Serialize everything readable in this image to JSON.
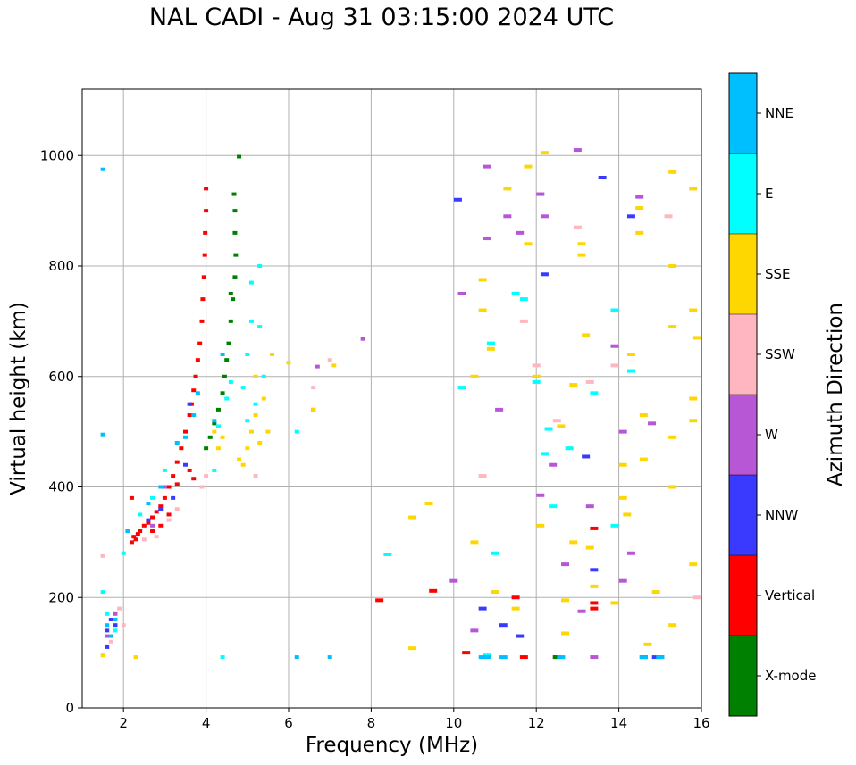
{
  "chart_data": {
    "type": "scatter",
    "title": "NAL CADI - Aug 31 03:15:00 2024 UTC",
    "xlabel": "Frequency (MHz)",
    "ylabel": "Virtual height (km)",
    "xlim": [
      1,
      16
    ],
    "ylim": [
      0,
      1120
    ],
    "xticks": [
      2,
      4,
      6,
      8,
      10,
      12,
      14,
      16
    ],
    "yticks": [
      0,
      200,
      400,
      600,
      800,
      1000
    ],
    "grid": true,
    "colorbar": {
      "label": "Azimuth Direction",
      "entries": [
        {
          "name": "X-mode",
          "color": "#008000"
        },
        {
          "name": "Vertical",
          "color": "#ff0000"
        },
        {
          "name": "NNW",
          "color": "#3a3aff"
        },
        {
          "name": "W",
          "color": "#b757d6"
        },
        {
          "name": "SSW",
          "color": "#ffb6c1"
        },
        {
          "name": "SSE",
          "color": "#ffd700"
        },
        {
          "name": "E",
          "color": "#00ffff"
        },
        {
          "name": "NNE",
          "color": "#00bfff"
        }
      ]
    },
    "series": [
      {
        "name": "Vertical",
        "points": [
          [
            2.2,
            300
          ],
          [
            2.25,
            310
          ],
          [
            2.3,
            305
          ],
          [
            2.35,
            315
          ],
          [
            2.4,
            320
          ],
          [
            2.5,
            330
          ],
          [
            2.6,
            335
          ],
          [
            2.7,
            345
          ],
          [
            2.8,
            355
          ],
          [
            2.9,
            365
          ],
          [
            3.0,
            380
          ],
          [
            3.1,
            400
          ],
          [
            3.2,
            420
          ],
          [
            3.3,
            445
          ],
          [
            3.4,
            470
          ],
          [
            3.5,
            500
          ],
          [
            3.6,
            530
          ],
          [
            3.65,
            550
          ],
          [
            3.7,
            575
          ],
          [
            3.75,
            600
          ],
          [
            3.8,
            630
          ],
          [
            3.85,
            660
          ],
          [
            3.9,
            700
          ],
          [
            3.92,
            740
          ],
          [
            3.95,
            780
          ],
          [
            3.97,
            820
          ],
          [
            3.98,
            860
          ],
          [
            4.0,
            900
          ],
          [
            4.0,
            940
          ],
          [
            3.6,
            430
          ],
          [
            3.7,
            415
          ],
          [
            3.3,
            405
          ],
          [
            3.1,
            350
          ],
          [
            2.9,
            330
          ],
          [
            2.7,
            320
          ],
          [
            2.2,
            380
          ],
          [
            12.5,
            92
          ],
          [
            13.4,
            190
          ],
          [
            13.4,
            180
          ],
          [
            13.4,
            325
          ],
          [
            14.6,
            92
          ],
          [
            11.7,
            92
          ],
          [
            8.2,
            195
          ],
          [
            9.5,
            212
          ],
          [
            11.5,
            200
          ],
          [
            10.3,
            100
          ]
        ]
      },
      {
        "name": "X-mode",
        "points": [
          [
            4.0,
            470
          ],
          [
            4.1,
            490
          ],
          [
            4.2,
            515
          ],
          [
            4.3,
            540
          ],
          [
            4.4,
            570
          ],
          [
            4.45,
            600
          ],
          [
            4.5,
            630
          ],
          [
            4.55,
            660
          ],
          [
            4.6,
            700
          ],
          [
            4.65,
            740
          ],
          [
            4.7,
            780
          ],
          [
            4.72,
            820
          ],
          [
            4.7,
            860
          ],
          [
            4.7,
            900
          ],
          [
            4.68,
            930
          ],
          [
            4.6,
            750
          ],
          [
            4.8,
            998
          ],
          [
            12.5,
            92
          ]
        ]
      },
      {
        "name": "NNW",
        "points": [
          [
            1.6,
            140
          ],
          [
            1.7,
            160
          ],
          [
            1.8,
            150
          ],
          [
            1.6,
            110
          ],
          [
            2.6,
            340
          ],
          [
            2.9,
            360
          ],
          [
            3.2,
            380
          ],
          [
            3.5,
            440
          ],
          [
            3.6,
            550
          ],
          [
            10.1,
            920
          ],
          [
            10.7,
            180
          ],
          [
            11.2,
            150
          ],
          [
            11.6,
            130
          ],
          [
            12.2,
            785
          ],
          [
            13.2,
            455
          ],
          [
            13.6,
            960
          ],
          [
            13.4,
            250
          ],
          [
            14.3,
            890
          ],
          [
            15.0,
            92
          ],
          [
            14.9,
            92
          ]
        ]
      },
      {
        "name": "W",
        "points": [
          [
            1.6,
            130
          ],
          [
            1.8,
            170
          ],
          [
            2.7,
            330
          ],
          [
            3.0,
            400
          ],
          [
            6.7,
            618
          ],
          [
            6.6,
            540
          ],
          [
            7.8,
            668
          ],
          [
            10.0,
            230
          ],
          [
            10.2,
            750
          ],
          [
            10.5,
            140
          ],
          [
            10.8,
            850
          ],
          [
            10.8,
            980
          ],
          [
            11.1,
            540
          ],
          [
            11.3,
            890
          ],
          [
            11.6,
            860
          ],
          [
            12.1,
            930
          ],
          [
            12.2,
            890
          ],
          [
            12.1,
            385
          ],
          [
            12.4,
            440
          ],
          [
            12.7,
            260
          ],
          [
            13.0,
            1010
          ],
          [
            13.1,
            175
          ],
          [
            13.3,
            365
          ],
          [
            13.4,
            92
          ],
          [
            13.9,
            655
          ],
          [
            14.1,
            500
          ],
          [
            14.1,
            230
          ],
          [
            14.3,
            280
          ],
          [
            14.5,
            925
          ],
          [
            14.8,
            515
          ]
        ]
      },
      {
        "name": "SSW",
        "points": [
          [
            1.7,
            120
          ],
          [
            1.9,
            180
          ],
          [
            2.0,
            150
          ],
          [
            1.5,
            275
          ],
          [
            2.5,
            305
          ],
          [
            2.8,
            310
          ],
          [
            3.1,
            340
          ],
          [
            3.3,
            360
          ],
          [
            3.9,
            400
          ],
          [
            4.0,
            420
          ],
          [
            5.2,
            420
          ],
          [
            6.6,
            580
          ],
          [
            7.0,
            630
          ],
          [
            10.7,
            420
          ],
          [
            11.7,
            700
          ],
          [
            12.0,
            620
          ],
          [
            12.5,
            520
          ],
          [
            13.0,
            870
          ],
          [
            13.3,
            590
          ],
          [
            13.9,
            620
          ],
          [
            15.2,
            890
          ],
          [
            15.9,
            200
          ]
        ]
      },
      {
        "name": "SSE",
        "points": [
          [
            1.5,
            95
          ],
          [
            2.3,
            92
          ],
          [
            4.2,
            500
          ],
          [
            4.3,
            470
          ],
          [
            4.4,
            490
          ],
          [
            4.8,
            450
          ],
          [
            4.9,
            440
          ],
          [
            5.0,
            470
          ],
          [
            5.1,
            500
          ],
          [
            5.2,
            530
          ],
          [
            5.3,
            480
          ],
          [
            5.4,
            560
          ],
          [
            5.5,
            500
          ],
          [
            5.2,
            600
          ],
          [
            5.6,
            640
          ],
          [
            6.0,
            625
          ],
          [
            6.6,
            540
          ],
          [
            7.1,
            620
          ],
          [
            9.0,
            345
          ],
          [
            9.0,
            108
          ],
          [
            9.4,
            370
          ],
          [
            10.5,
            600
          ],
          [
            10.5,
            300
          ],
          [
            10.7,
            720
          ],
          [
            10.7,
            775
          ],
          [
            10.9,
            650
          ],
          [
            11.0,
            210
          ],
          [
            11.3,
            940
          ],
          [
            11.5,
            180
          ],
          [
            11.8,
            980
          ],
          [
            11.8,
            840
          ],
          [
            12.0,
            600
          ],
          [
            12.1,
            330
          ],
          [
            12.2,
            1005
          ],
          [
            12.6,
            510
          ],
          [
            12.7,
            195
          ],
          [
            12.7,
            135
          ],
          [
            12.9,
            300
          ],
          [
            12.9,
            585
          ],
          [
            13.1,
            840
          ],
          [
            13.1,
            820
          ],
          [
            13.2,
            675
          ],
          [
            13.3,
            290
          ],
          [
            13.4,
            220
          ],
          [
            13.9,
            190
          ],
          [
            14.1,
            440
          ],
          [
            14.1,
            380
          ],
          [
            14.2,
            350
          ],
          [
            14.3,
            640
          ],
          [
            14.5,
            905
          ],
          [
            14.5,
            860
          ],
          [
            14.6,
            530
          ],
          [
            14.6,
            450
          ],
          [
            14.7,
            115
          ],
          [
            14.9,
            210
          ],
          [
            15.3,
            970
          ],
          [
            15.3,
            800
          ],
          [
            15.3,
            690
          ],
          [
            15.3,
            490
          ],
          [
            15.3,
            400
          ],
          [
            15.3,
            150
          ],
          [
            15.8,
            940
          ],
          [
            15.8,
            720
          ],
          [
            15.8,
            560
          ],
          [
            15.8,
            520
          ],
          [
            15.8,
            260
          ],
          [
            15.9,
            670
          ]
        ]
      },
      {
        "name": "E",
        "points": [
          [
            1.5,
            210
          ],
          [
            1.6,
            170
          ],
          [
            1.8,
            140
          ],
          [
            2.0,
            280
          ],
          [
            2.4,
            350
          ],
          [
            2.7,
            380
          ],
          [
            3.0,
            430
          ],
          [
            4.2,
            430
          ],
          [
            4.3,
            510
          ],
          [
            4.5,
            560
          ],
          [
            4.6,
            590
          ],
          [
            5.0,
            640
          ],
          [
            5.1,
            700
          ],
          [
            5.1,
            770
          ],
          [
            5.3,
            800
          ],
          [
            5.3,
            690
          ],
          [
            5.4,
            600
          ],
          [
            5.2,
            550
          ],
          [
            5.0,
            520
          ],
          [
            4.9,
            580
          ],
          [
            4.4,
            92
          ],
          [
            6.2,
            500
          ],
          [
            8.4,
            278
          ],
          [
            10.2,
            580
          ],
          [
            10.8,
            95
          ],
          [
            10.9,
            660
          ],
          [
            11.0,
            280
          ],
          [
            11.5,
            750
          ],
          [
            11.7,
            740
          ],
          [
            12.0,
            590
          ],
          [
            12.2,
            460
          ],
          [
            12.3,
            505
          ],
          [
            12.4,
            365
          ],
          [
            12.8,
            470
          ],
          [
            13.4,
            570
          ],
          [
            13.9,
            330
          ],
          [
            13.9,
            720
          ],
          [
            14.3,
            610
          ]
        ]
      },
      {
        "name": "NNE",
        "points": [
          [
            1.5,
            975
          ],
          [
            1.5,
            495
          ],
          [
            1.6,
            150
          ],
          [
            1.7,
            130
          ],
          [
            1.8,
            160
          ],
          [
            2.1,
            320
          ],
          [
            2.6,
            370
          ],
          [
            2.9,
            400
          ],
          [
            3.3,
            480
          ],
          [
            3.5,
            490
          ],
          [
            3.7,
            530
          ],
          [
            3.8,
            570
          ],
          [
            4.2,
            520
          ],
          [
            4.4,
            640
          ],
          [
            6.2,
            92
          ],
          [
            7.0,
            92
          ],
          [
            10.7,
            92
          ],
          [
            10.8,
            92
          ],
          [
            11.2,
            92
          ],
          [
            12.6,
            92
          ],
          [
            14.6,
            92
          ],
          [
            15.0,
            92
          ]
        ]
      }
    ]
  }
}
